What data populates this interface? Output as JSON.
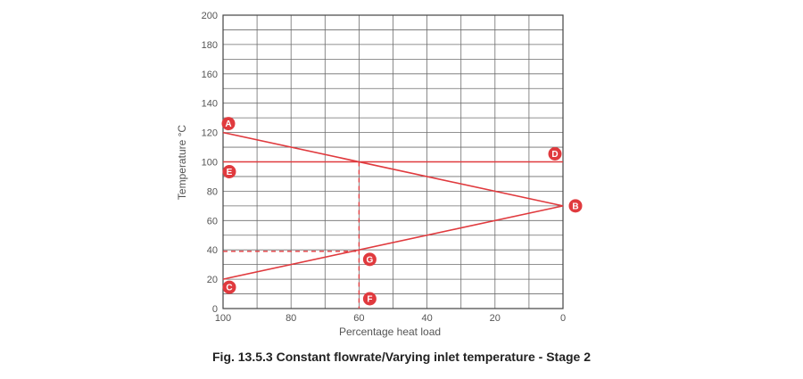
{
  "caption": "Fig. 13.5.3 Constant flowrate/Varying inlet temperature - Stage 2",
  "chart_data": {
    "type": "line",
    "xlabel": "Percentage heat load",
    "ylabel": "Temperature °C",
    "xlim": [
      100,
      0
    ],
    "ylim": [
      0,
      200
    ],
    "x_ticks": [
      100,
      80,
      60,
      40,
      20,
      0
    ],
    "y_ticks": [
      0,
      20,
      40,
      60,
      80,
      100,
      120,
      140,
      160,
      180,
      200
    ],
    "grid": true,
    "line_color": "#e03a3e",
    "series": [
      {
        "points": [
          [
            100,
            120
          ],
          [
            0,
            70
          ]
        ]
      },
      {
        "points": [
          [
            100,
            100
          ],
          [
            0,
            100
          ]
        ]
      },
      {
        "points": [
          [
            100,
            20
          ],
          [
            0,
            70
          ]
        ]
      }
    ],
    "reference_lines": [
      {
        "points": [
          [
            60,
            100
          ],
          [
            60,
            0
          ]
        ],
        "style": "dashed"
      },
      {
        "points": [
          [
            100,
            39
          ],
          [
            60,
            39
          ]
        ],
        "style": "dashed"
      }
    ],
    "annotations": [
      {
        "label": "A",
        "x": 100,
        "y": 120
      },
      {
        "label": "B",
        "x": 0,
        "y": 70
      },
      {
        "label": "C",
        "x": 100,
        "y": 20
      },
      {
        "label": "D",
        "x": 0,
        "y": 100
      },
      {
        "label": "E",
        "x": 100,
        "y": 100
      },
      {
        "label": "F",
        "x": 60,
        "y": 0
      },
      {
        "label": "G",
        "x": 60,
        "y": 39
      }
    ]
  }
}
